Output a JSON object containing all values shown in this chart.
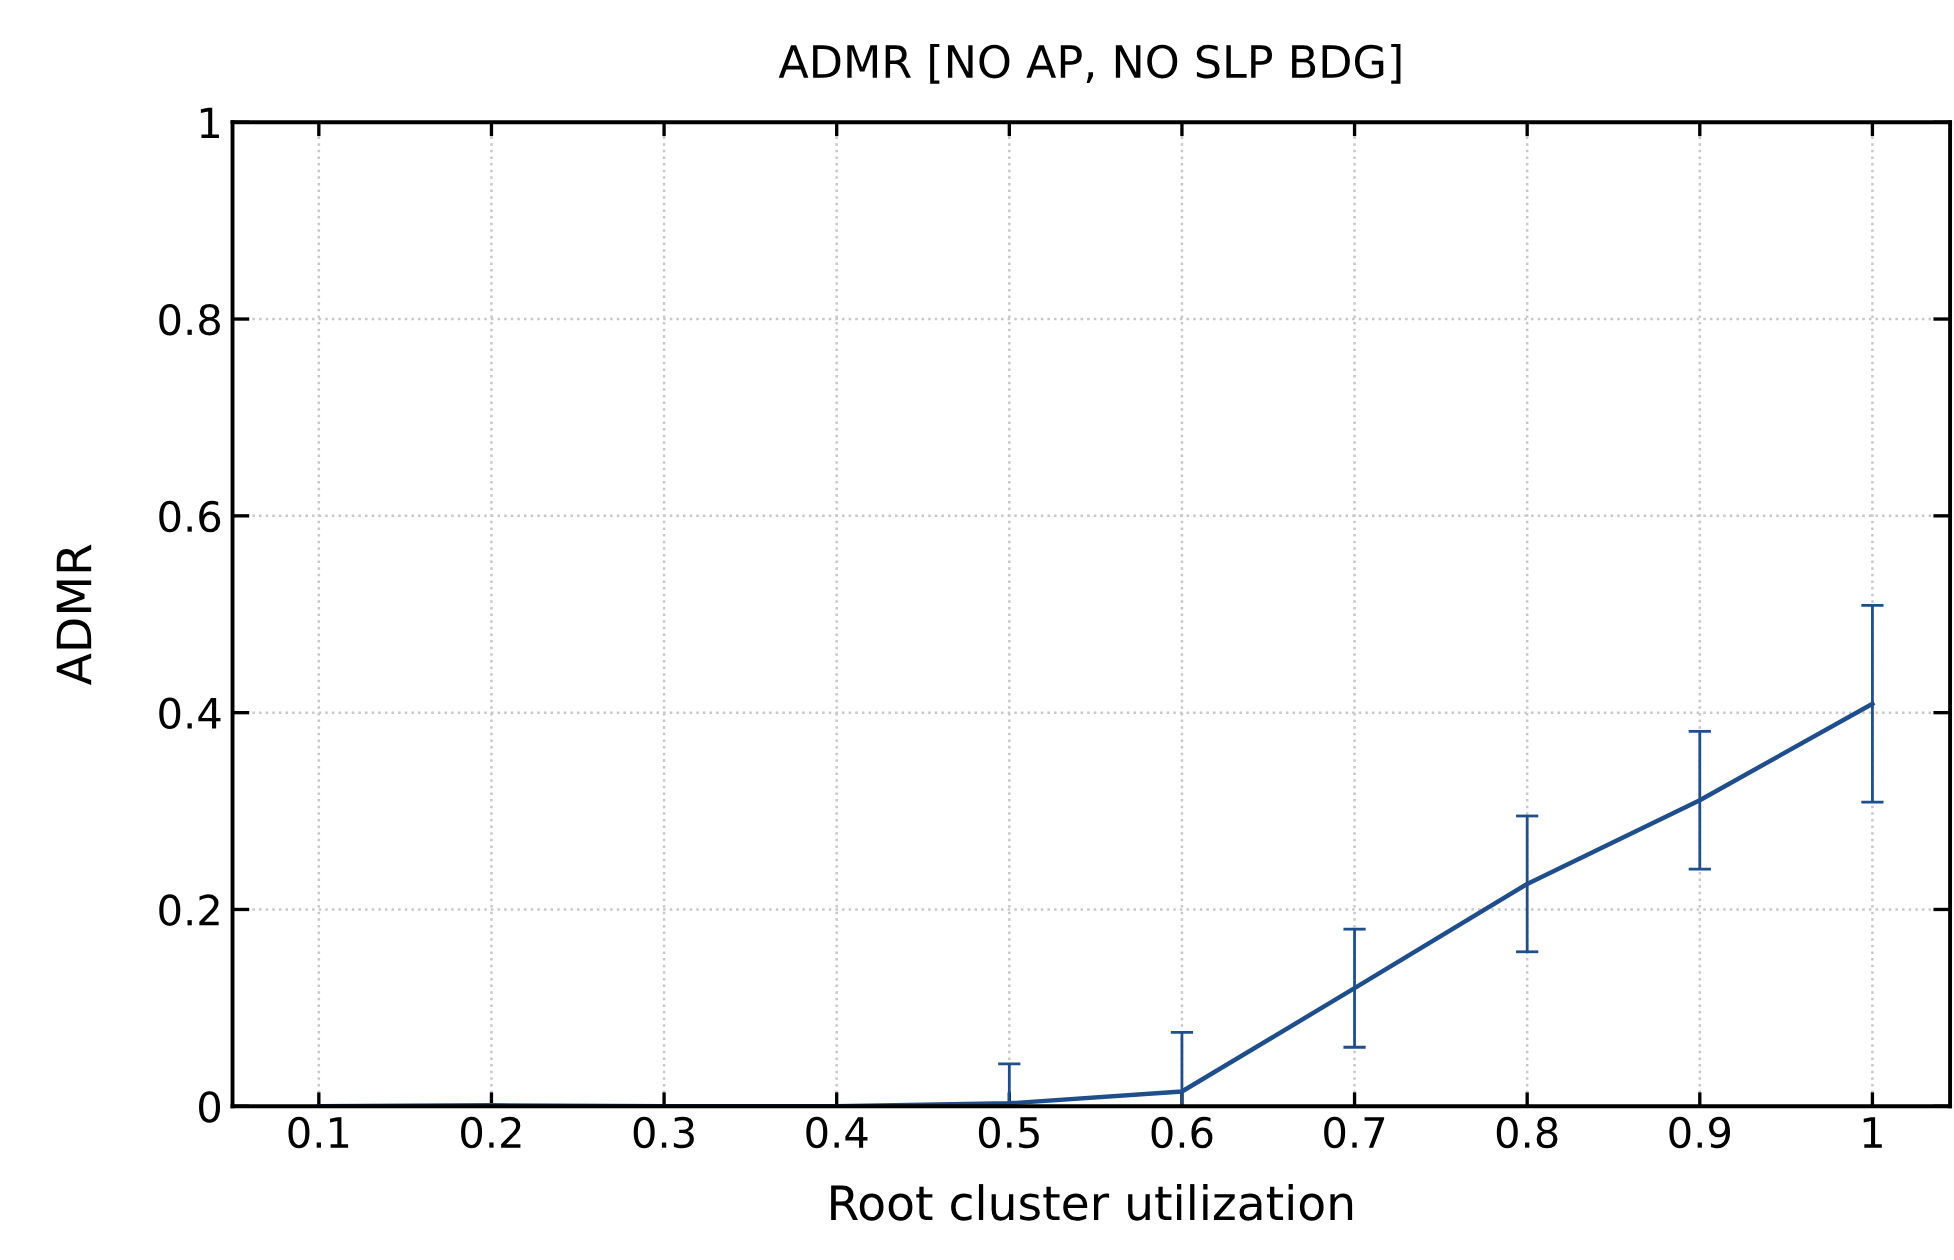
{
  "chart_data": {
    "type": "line",
    "title": "ADMR [NO AP, NO SLP BDG]",
    "xlabel": "Root cluster utilization",
    "ylabel": "ADMR",
    "x": [
      0.1,
      0.2,
      0.3,
      0.4,
      0.5,
      0.6,
      0.7,
      0.8,
      0.9,
      1
    ],
    "series": [
      {
        "color": "#1f4e8c",
        "values": [
          0,
          0.001,
          0,
          0,
          0.003,
          0.015,
          0.12,
          0.226,
          0.311,
          0.409
        ],
        "errors": [
          null,
          null,
          null,
          null,
          [
            0,
            0.043
          ],
          [
            0,
            0.075
          ],
          0.06,
          0.069,
          0.07,
          0.1
        ]
      }
    ],
    "xlim": [
      0.05,
      1.045
    ],
    "ylim": [
      0,
      1
    ],
    "xticks": [
      0.1,
      0.2,
      0.3,
      0.4,
      0.5,
      0.6,
      0.7,
      0.8,
      0.9,
      1
    ],
    "yticks": [
      0,
      0.2,
      0.4,
      0.6,
      0.8,
      1
    ],
    "grid": true,
    "marker": "none",
    "line_style": "solid"
  }
}
